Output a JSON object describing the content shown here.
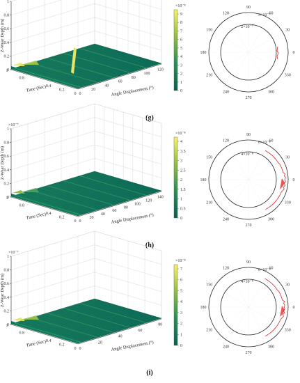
{
  "panels": [
    {
      "label": "(g)",
      "surface": {
        "zlabel": "Z-Wear Depth (m)",
        "z_exponent": "×10⁻⁷",
        "z_ticks": [
          "1",
          "0.8",
          "0.6",
          "0.4",
          "0.2",
          "0"
        ],
        "time_label": "Time (Sec)",
        "time_ticks": [
          "0.8",
          "0.4",
          "0.2",
          "0"
        ],
        "time_top_tick": "1",
        "angle_label": "Angle Displacement (°)",
        "angle_ticks": [
          "0",
          "20",
          "40",
          "60",
          "80",
          "100",
          "120"
        ],
        "colorbar_exponent": "×10⁻⁸",
        "colorbar_ticks": [
          "9",
          "8",
          "7",
          "6",
          "5",
          "4",
          "3",
          "2",
          "1",
          "0"
        ]
      },
      "polar": {
        "angle_ticks": [
          "90",
          "60",
          "30",
          "0",
          "330",
          "300",
          "270",
          "240",
          "210",
          "180",
          "150",
          "120"
        ],
        "ring_labels": [
          "3×10⁻⁷",
          "2×10⁻⁷"
        ]
      }
    },
    {
      "label": "(h)",
      "surface": {
        "zlabel": "Z-Wear Depth (m)",
        "z_exponent": "×10⁻⁷",
        "z_ticks": [
          "1",
          "0.8",
          "0.6",
          "0.4",
          "0.2",
          "0"
        ],
        "time_label": "Time (Sec)",
        "time_ticks": [
          "0.8",
          "0.4",
          "0.2",
          "0"
        ],
        "time_top_tick": "1",
        "angle_label": "Angle Displacement (°)",
        "angle_ticks": [
          "0",
          "20",
          "40",
          "60",
          "80",
          "100",
          "120",
          "140"
        ],
        "colorbar_exponent": "×10⁻⁸",
        "colorbar_ticks": [
          "4",
          "3.5",
          "3",
          "2.5",
          "2",
          "1.5",
          "1",
          "0.5",
          "0"
        ]
      },
      "polar": {
        "angle_ticks": [
          "90",
          "60",
          "30",
          "0",
          "330",
          "300",
          "270",
          "240",
          "210",
          "180",
          "150",
          "120"
        ],
        "ring_labels": [
          "6×10⁻⁸",
          "4×10⁻⁸"
        ]
      }
    },
    {
      "label": "(i)",
      "surface": {
        "zlabel": "Z-Wear Depth (m)",
        "z_exponent": "×10⁻⁷",
        "z_ticks": [
          "1",
          "0.8",
          "0.6",
          "0.4",
          "0.2",
          "0"
        ],
        "time_label": "Time (Sec)",
        "time_ticks": [
          "0.8",
          "0.4",
          "0.2",
          "0"
        ],
        "time_top_tick": "1",
        "angle_label": "Angle Displacement (°)",
        "angle_ticks": [
          "0",
          "20",
          "40",
          "60",
          "80"
        ],
        "colorbar_exponent": "×10⁻⁸",
        "colorbar_ticks": [
          "7",
          "6",
          "5",
          "4",
          "3",
          "2",
          "1",
          "0"
        ]
      },
      "polar": {
        "angle_ticks": [
          "90",
          "60",
          "30",
          "0",
          "330",
          "300",
          "270",
          "240",
          "210",
          "180",
          "150",
          "120"
        ],
        "ring_labels": [
          "6×10⁻⁸",
          "4×10⁻⁸"
        ]
      }
    }
  ],
  "chart_data": [
    {
      "type": "surface",
      "panel": "(g)",
      "z_range": [
        0,
        1e-07
      ],
      "angle_range": [
        0,
        120
      ],
      "time_range": [
        0,
        1
      ],
      "colorbar_range": [
        0,
        9.5e-08
      ]
    },
    {
      "type": "polar",
      "panel": "(g)",
      "r_max": 3e-07,
      "series_color": "#e02020"
    },
    {
      "type": "surface",
      "panel": "(h)",
      "z_range": [
        0,
        1e-07
      ],
      "angle_range": [
        0,
        150
      ],
      "time_range": [
        0,
        1
      ],
      "colorbar_range": [
        0,
        4.2e-08
      ]
    },
    {
      "type": "polar",
      "panel": "(h)",
      "r_max": 6e-08,
      "series_color": "#e02020"
    },
    {
      "type": "surface",
      "panel": "(i)",
      "z_range": [
        0,
        1e-07
      ],
      "angle_range": [
        0,
        90
      ],
      "time_range": [
        0,
        1
      ],
      "colorbar_range": [
        0,
        7.5e-08
      ]
    },
    {
      "type": "polar",
      "panel": "(i)",
      "r_max": 6e-08,
      "series_color": "#e02020"
    }
  ],
  "colors": {
    "surface_dark": "#0b6b53",
    "surface_mid": "#2e8c5a",
    "surface_light": "#f2ee6a",
    "polar_series": "#e02020",
    "axis": "#333333"
  }
}
